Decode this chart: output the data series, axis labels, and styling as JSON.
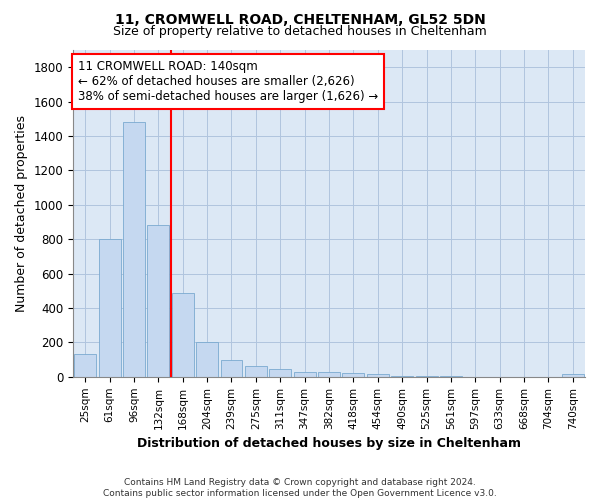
{
  "title1": "11, CROMWELL ROAD, CHELTENHAM, GL52 5DN",
  "title2": "Size of property relative to detached houses in Cheltenham",
  "xlabel": "Distribution of detached houses by size in Cheltenham",
  "ylabel": "Number of detached properties",
  "categories": [
    "25sqm",
    "61sqm",
    "96sqm",
    "132sqm",
    "168sqm",
    "204sqm",
    "239sqm",
    "275sqm",
    "311sqm",
    "347sqm",
    "382sqm",
    "418sqm",
    "454sqm",
    "490sqm",
    "525sqm",
    "561sqm",
    "597sqm",
    "633sqm",
    "668sqm",
    "704sqm",
    "740sqm"
  ],
  "values": [
    130,
    800,
    1480,
    880,
    490,
    205,
    100,
    65,
    45,
    30,
    28,
    20,
    18,
    3,
    2,
    2,
    1,
    1,
    1,
    1,
    15
  ],
  "bar_color": "#c5d8f0",
  "bar_edgecolor": "#7aaad0",
  "vline_x": 3.5,
  "annotation_box_text": "11 CROMWELL ROAD: 140sqm\n← 62% of detached houses are smaller (2,626)\n38% of semi-detached houses are larger (1,626) →",
  "ylim": [
    0,
    1900
  ],
  "yticks": [
    0,
    200,
    400,
    600,
    800,
    1000,
    1200,
    1400,
    1600,
    1800
  ],
  "footnote": "Contains HM Land Registry data © Crown copyright and database right 2024.\nContains public sector information licensed under the Open Government Licence v3.0.",
  "bg_color": "#ffffff",
  "plot_bg_color": "#dce8f5"
}
